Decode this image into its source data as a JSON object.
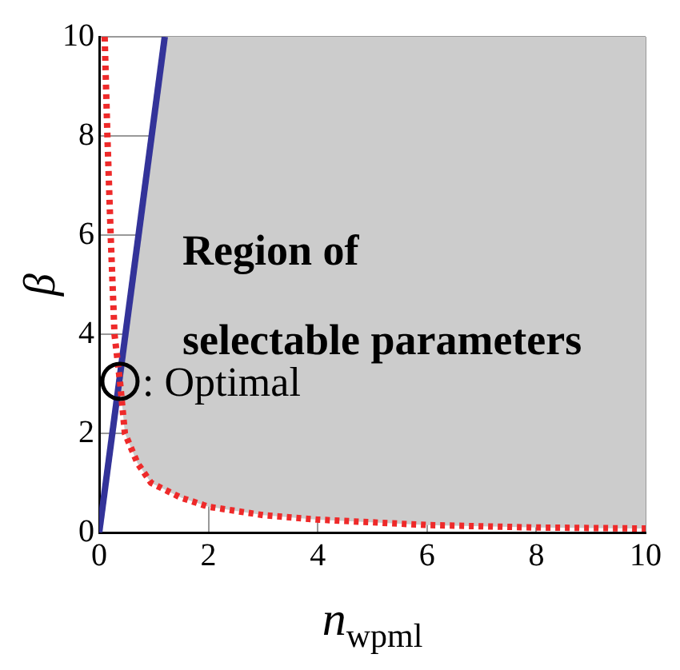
{
  "chart_data": {
    "type": "line",
    "xlabel": "n$_{wpml}$",
    "ylabel": "β",
    "xlim": [
      0,
      10
    ],
    "ylim": [
      0,
      10
    ],
    "xticks": [
      0,
      2,
      4,
      6,
      8,
      10
    ],
    "yticks": [
      0,
      2,
      4,
      6,
      8,
      10
    ],
    "grid": true,
    "legend": false,
    "series": [
      {
        "color": "#ee2a2a",
        "line_style": "dotted",
        "x": [
          0.1,
          0.15,
          0.21,
          0.28,
          0.38,
          0.47,
          0.7,
          0.95,
          1.5,
          2,
          3,
          4,
          6,
          8,
          10
        ],
        "values": [
          10,
          8,
          6,
          4,
          3.05,
          2,
          1.4,
          1,
          0.7,
          0.52,
          0.35,
          0.26,
          0.15,
          0.1,
          0.08
        ]
      },
      {
        "color": "#333399",
        "line_style": "solid",
        "x": [
          0,
          1.2
        ],
        "values": [
          0,
          10
        ]
      },
      {
        "type": "scatter",
        "color": "#000000",
        "marker": "circle",
        "x": [
          0.38
        ],
        "values": [
          3.05
        ]
      }
    ],
    "annotations": [
      "Region of selectable parameters",
      {
        "text": ": Optimal",
        "x": 0.38,
        "y": 3.05
      }
    ]
  }
}
